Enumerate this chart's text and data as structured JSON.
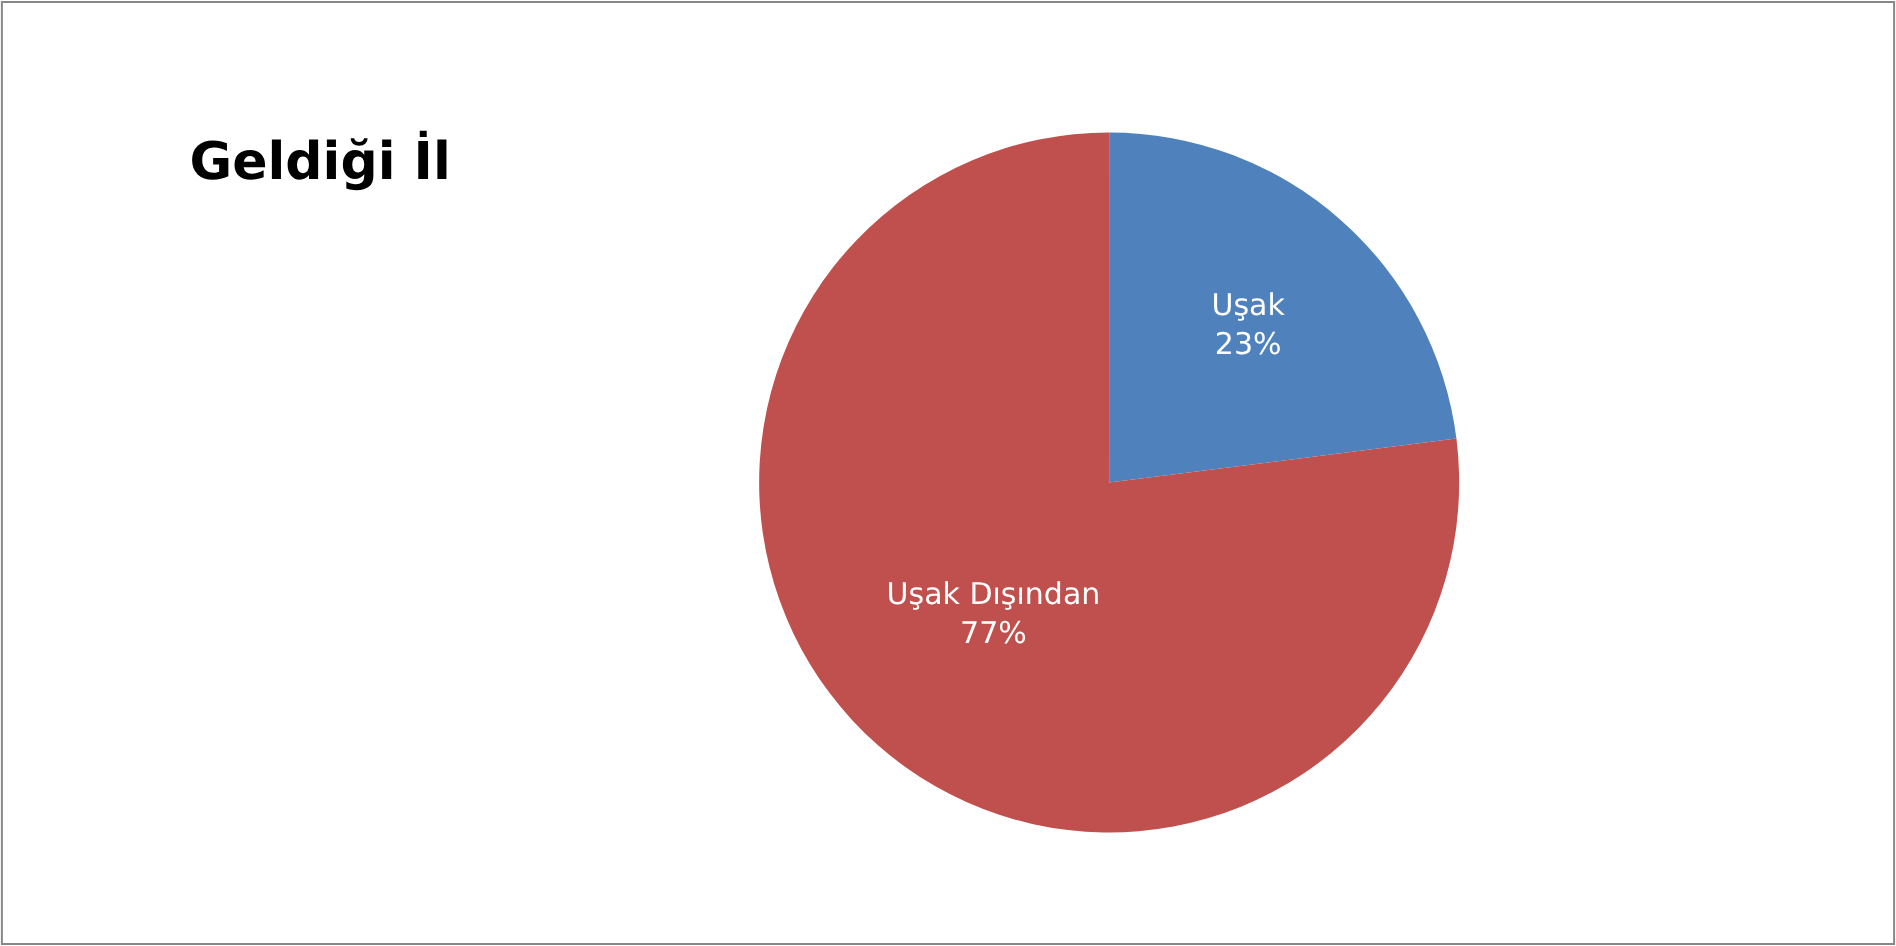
{
  "chart_data": {
    "type": "pie",
    "title": "Geldiği İl",
    "categories": [
      "Uşak",
      "Uşak Dışından"
    ],
    "values": [
      23,
      77
    ],
    "colors": [
      "#4f81bd",
      "#c0504d"
    ],
    "value_labels": [
      "23%",
      "77%"
    ],
    "legend": false
  }
}
